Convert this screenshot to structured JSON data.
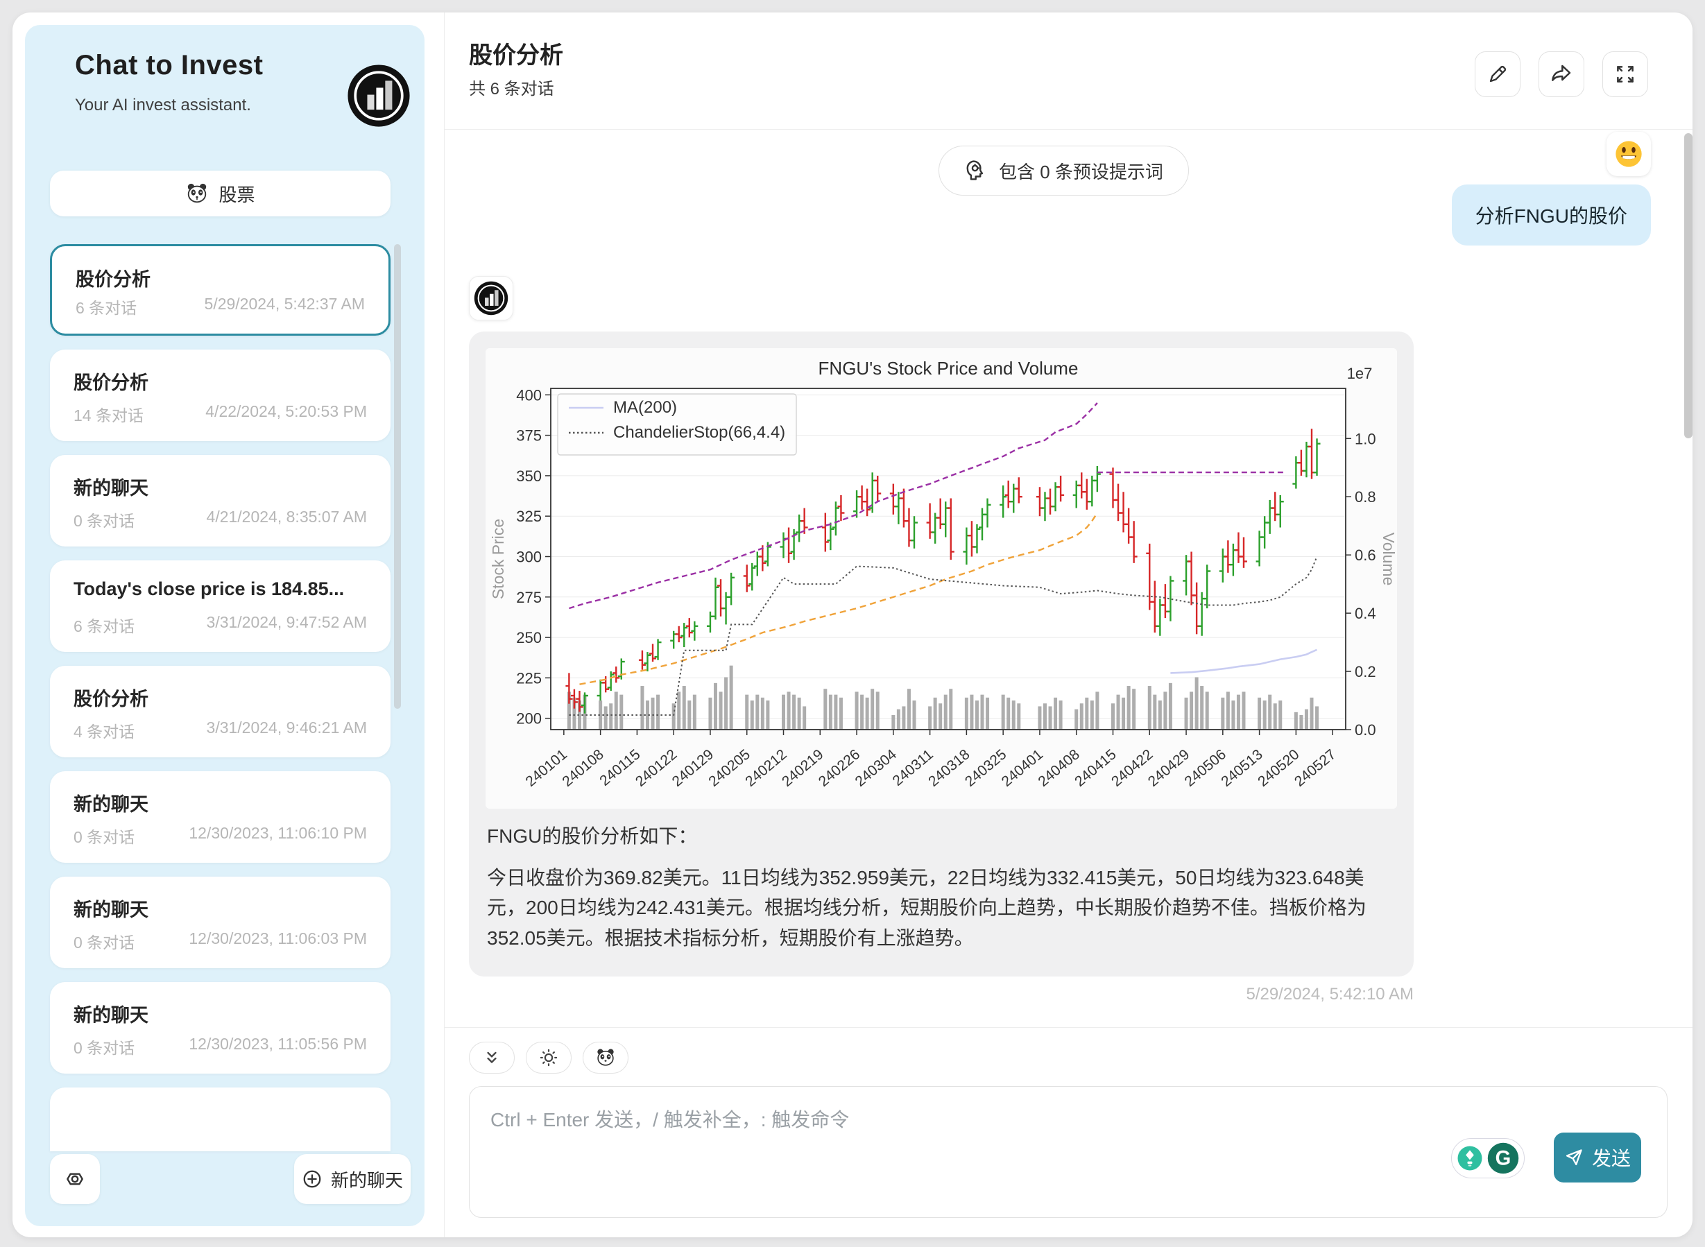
{
  "colors": {
    "accent": "#2c8ca1",
    "sidebar_bg": "#def1fa",
    "user_bubble": "#d8eefb",
    "assistant_bubble": "#f0f0f1",
    "send_button": "#2e8ca2"
  },
  "icons": {
    "brand": "bar-chart-circle",
    "stock": "panda",
    "edit": "pencil",
    "share": "arrow-forward",
    "fullscreen": "expand-arrows",
    "preset": "head-brain",
    "user": "smiley-emoji",
    "collapse": "double-chevron-down",
    "theme": "sun",
    "settings": "gear",
    "new_chat": "plus-circle",
    "suggestion": "lightbulb",
    "grammarly": "g-logo",
    "send": "paper-plane"
  },
  "sidebar": {
    "title": "Chat to Invest",
    "subtitle": "Your AI invest assistant.",
    "stock_button_label": "股票",
    "new_chat_label": "新的聊天",
    "chats": [
      {
        "title": "股价分析",
        "count": "6 条对话",
        "time": "5/29/2024, 5:42:37 AM"
      },
      {
        "title": "股价分析",
        "count": "14 条对话",
        "time": "4/22/2024, 5:20:53 PM"
      },
      {
        "title": "新的聊天",
        "count": "0 条对话",
        "time": "4/21/2024, 8:35:07 AM"
      },
      {
        "title": "Today's close price is 184.85...",
        "count": "6 条对话",
        "time": "3/31/2024, 9:47:52 AM"
      },
      {
        "title": "股价分析",
        "count": "4 条对话",
        "time": "3/31/2024, 9:46:21 AM"
      },
      {
        "title": "新的聊天",
        "count": "0 条对话",
        "time": "12/30/2023, 11:06:10 PM"
      },
      {
        "title": "新的聊天",
        "count": "0 条对话",
        "time": "12/30/2023, 11:06:03 PM"
      },
      {
        "title": "新的聊天",
        "count": "0 条对话",
        "time": "12/30/2023, 11:05:56 PM"
      }
    ]
  },
  "header": {
    "title": "股价分析",
    "subtitle": "共 6 条对话"
  },
  "conversation": {
    "preset_pill": "包含 0 条预设提示词",
    "user_message": "分析FNGU的股价",
    "assistant_intro": "FNGU的股价分析如下：",
    "assistant_body": "今日收盘价为369.82美元。11日均线为352.959美元，22日均线为332.415美元，50日均线为323.648美元，200日均线为242.431美元。根据均线分析，短期股价向上趋势，中长期股价趋势不佳。挡板价格为352.05美元。根据技术指标分析，短期股价有上涨趋势。",
    "assistant_timestamp": "5/29/2024, 5:42:10 AM"
  },
  "composer": {
    "placeholder": "Ctrl + Enter 发送，/ 触发补全，: 触发命令",
    "send_label": "发送"
  },
  "chart_data": {
    "type": "ohlc+volume",
    "title": "FNGU's Stock Price and Volume",
    "ylabel_left": "Stock Price",
    "ylabel_right": "Volume",
    "right_axis_exponent": "1e7",
    "y_left_ticks": [
      200,
      225,
      250,
      275,
      300,
      325,
      350,
      375,
      400
    ],
    "y_left_range": [
      193,
      404
    ],
    "y_right_ticks": [
      0.0,
      0.2,
      0.4,
      0.6,
      0.8,
      1.0
    ],
    "x_tick_labels": [
      "240101",
      "240108",
      "240115",
      "240122",
      "240129",
      "240205",
      "240212",
      "240219",
      "240226",
      "240304",
      "240311",
      "240318",
      "240325",
      "240401",
      "240408",
      "240415",
      "240422",
      "240429",
      "240506",
      "240513",
      "240520",
      "240527"
    ],
    "legend": [
      {
        "label": "MA(200)",
        "style": "solid",
        "color": "#c9cdf2"
      },
      {
        "label": "ChandelierStop(66,4.4)",
        "style": "dotted",
        "color": "#555555"
      }
    ],
    "colors": {
      "up": "#2ca02c",
      "down": "#d62728",
      "volume": "#a6a6a6",
      "trend_upper": "#9b30a5",
      "trend_lower": "#f0a33a",
      "resistance": "#9b30a5",
      "chandelier": "#555555",
      "ma200": "#c9cdf2"
    },
    "candles": [
      [
        "240102",
        220,
        228,
        209,
        212,
        0.13
      ],
      [
        "240103",
        214,
        218,
        206,
        210,
        0.11
      ],
      [
        "240104",
        212,
        217,
        204,
        207,
        0.1
      ],
      [
        "240105",
        208,
        216,
        203,
        214,
        0.12
      ],
      [
        "240108",
        214,
        224,
        211,
        222,
        0.1
      ],
      [
        "240109",
        222,
        226,
        216,
        218,
        0.08
      ],
      [
        "240110",
        219,
        229,
        217,
        227,
        0.09
      ],
      [
        "240111",
        228,
        232,
        222,
        225,
        0.13
      ],
      [
        "240112",
        226,
        237,
        224,
        235,
        0.12
      ],
      [
        "240116",
        236,
        242,
        230,
        233,
        0.15
      ],
      [
        "240117",
        234,
        241,
        229,
        239,
        0.1
      ],
      [
        "240118",
        240,
        246,
        235,
        237,
        0.11
      ],
      [
        "240119",
        238,
        249,
        236,
        247,
        0.12
      ],
      [
        "240122",
        248,
        254,
        243,
        252,
        0.09
      ],
      [
        "240123",
        252,
        257,
        247,
        250,
        0.13
      ],
      [
        "240124",
        251,
        259,
        244,
        256,
        0.15
      ],
      [
        "240125",
        257,
        262,
        250,
        253,
        0.1
      ],
      [
        "240126",
        254,
        260,
        248,
        257,
        0.12
      ],
      [
        "240129",
        257,
        266,
        253,
        263,
        0.11
      ],
      [
        "240130",
        263,
        287,
        261,
        281,
        0.16
      ],
      [
        "240131",
        282,
        286,
        263,
        268,
        0.13
      ],
      [
        "240201",
        268,
        278,
        258,
        275,
        0.18
      ],
      [
        "240202",
        275,
        290,
        270,
        287,
        0.22
      ],
      [
        "240205",
        288,
        295,
        278,
        282,
        0.12
      ],
      [
        "240206",
        283,
        296,
        279,
        293,
        0.1
      ],
      [
        "240207",
        294,
        303,
        288,
        300,
        0.12
      ],
      [
        "240208",
        300,
        307,
        291,
        296,
        0.11
      ],
      [
        "240209",
        297,
        309,
        294,
        306,
        0.1
      ],
      [
        "240212",
        306,
        315,
        299,
        311,
        0.12
      ],
      [
        "240213",
        311,
        318,
        296,
        302,
        0.13
      ],
      [
        "240214",
        303,
        317,
        298,
        314,
        0.12
      ],
      [
        "240215",
        315,
        326,
        309,
        322,
        0.11
      ],
      [
        "240216",
        322,
        330,
        314,
        318,
        0.08
      ],
      [
        "240220",
        318,
        327,
        303,
        309,
        0.14
      ],
      [
        "240221",
        310,
        321,
        304,
        317,
        0.12
      ],
      [
        "240222",
        318,
        334,
        313,
        330,
        0.12
      ],
      [
        "240223",
        331,
        338,
        322,
        327,
        0.11
      ],
      [
        "240226",
        328,
        341,
        324,
        337,
        0.13
      ],
      [
        "240227",
        337,
        344,
        329,
        334,
        0.12
      ],
      [
        "240228",
        334,
        342,
        325,
        329,
        0.11
      ],
      [
        "240229",
        330,
        352,
        327,
        347,
        0.14
      ],
      [
        "240301",
        347,
        350,
        334,
        339,
        0.13
      ],
      [
        "240304",
        339,
        345,
        326,
        331,
        0.05
      ],
      [
        "240305",
        331,
        340,
        320,
        336,
        0.07
      ],
      [
        "240306",
        336,
        342,
        318,
        322,
        0.08
      ],
      [
        "240307",
        322,
        330,
        306,
        310,
        0.14
      ],
      [
        "240308",
        310,
        325,
        305,
        321,
        0.1
      ],
      [
        "240311",
        321,
        333,
        311,
        315,
        0.08
      ],
      [
        "240312",
        315,
        327,
        308,
        324,
        0.11
      ],
      [
        "240313",
        324,
        336,
        317,
        320,
        0.09
      ],
      [
        "240314",
        320,
        334,
        312,
        330,
        0.12
      ],
      [
        "240315",
        330,
        336,
        298,
        303,
        0.14
      ],
      [
        "240318",
        303,
        318,
        295,
        313,
        0.11
      ],
      [
        "240319",
        313,
        322,
        300,
        306,
        0.12
      ],
      [
        "240320",
        306,
        320,
        302,
        317,
        0.1
      ],
      [
        "240321",
        318,
        330,
        310,
        326,
        0.12
      ],
      [
        "240322",
        326,
        336,
        318,
        332,
        0.11
      ],
      [
        "240325",
        332,
        344,
        324,
        337,
        0.12
      ],
      [
        "240326",
        338,
        347,
        330,
        334,
        0.11
      ],
      [
        "240327",
        334,
        345,
        327,
        342,
        0.1
      ],
      [
        "240328",
        342,
        349,
        333,
        337,
        0.09
      ],
      [
        "240401",
        337,
        343,
        325,
        330,
        0.08
      ],
      [
        "240402",
        330,
        340,
        322,
        336,
        0.09
      ],
      [
        "240403",
        336,
        342,
        326,
        331,
        0.08
      ],
      [
        "240404",
        331,
        346,
        328,
        343,
        0.11
      ],
      [
        "240405",
        343,
        350,
        334,
        338,
        0.1
      ],
      [
        "240408",
        338,
        347,
        330,
        344,
        0.07
      ],
      [
        "240409",
        344,
        352,
        336,
        340,
        0.09
      ],
      [
        "240410",
        340,
        348,
        329,
        334,
        0.11
      ],
      [
        "240411",
        334,
        350,
        331,
        347,
        0.1
      ],
      [
        "240412",
        347,
        356,
        340,
        351,
        0.13
      ],
      [
        "240415",
        351,
        355,
        330,
        335,
        0.09
      ],
      [
        "240416",
        335,
        345,
        322,
        327,
        0.12
      ],
      [
        "240417",
        327,
        340,
        315,
        320,
        0.11
      ],
      [
        "240418",
        320,
        330,
        308,
        312,
        0.15
      ],
      [
        "240419",
        312,
        322,
        296,
        300,
        0.14
      ],
      [
        "240422",
        302,
        308,
        267,
        272,
        0.15
      ],
      [
        "240423",
        272,
        285,
        253,
        257,
        0.12
      ],
      [
        "240424",
        257,
        274,
        251,
        270,
        0.1
      ],
      [
        "240425",
        270,
        283,
        262,
        266,
        0.13
      ],
      [
        "240426",
        266,
        288,
        260,
        285,
        0.16
      ],
      [
        "240429",
        285,
        301,
        276,
        297,
        0.11
      ],
      [
        "240430",
        297,
        303,
        270,
        276,
        0.13
      ],
      [
        "240501",
        276,
        284,
        252,
        257,
        0.18
      ],
      [
        "240502",
        257,
        278,
        251,
        274,
        0.15
      ],
      [
        "240503",
        274,
        295,
        268,
        291,
        0.13
      ],
      [
        "240506",
        291,
        305,
        284,
        300,
        0.11
      ],
      [
        "240507",
        300,
        310,
        290,
        295,
        0.13
      ],
      [
        "240508",
        295,
        308,
        288,
        304,
        0.1
      ],
      [
        "240509",
        304,
        315,
        296,
        300,
        0.12
      ],
      [
        "240510",
        300,
        312,
        293,
        297,
        0.13
      ],
      [
        "240513",
        297,
        316,
        294,
        312,
        0.11
      ],
      [
        "240514",
        312,
        325,
        305,
        321,
        0.1
      ],
      [
        "240515",
        321,
        335,
        314,
        330,
        0.12
      ],
      [
        "240516",
        330,
        340,
        322,
        326,
        0.09
      ],
      [
        "240517",
        326,
        338,
        318,
        334,
        0.1
      ],
      [
        "240520",
        345,
        362,
        342,
        358,
        0.06
      ],
      [
        "240521",
        358,
        366,
        350,
        353,
        0.05
      ],
      [
        "240522",
        353,
        371,
        349,
        368,
        0.07
      ],
      [
        "240523",
        368,
        379,
        348,
        352,
        0.11
      ],
      [
        "240524",
        352,
        373,
        350,
        369.82,
        0.08
      ]
    ],
    "lines": {
      "trend_upper": [
        [
          "240102",
          268
        ],
        [
          "240105",
          271
        ],
        [
          "240110",
          275
        ],
        [
          "240115",
          280
        ],
        [
          "240119",
          284
        ],
        [
          "240124",
          288
        ],
        [
          "240129",
          292
        ],
        [
          "240202",
          298
        ],
        [
          "240207",
          304
        ],
        [
          "240212",
          310
        ],
        [
          "240216",
          316
        ],
        [
          "240221",
          320
        ],
        [
          "240226",
          326
        ],
        [
          "240301",
          334
        ],
        [
          "240306",
          340
        ],
        [
          "240311",
          345
        ],
        [
          "240315",
          350
        ],
        [
          "240320",
          356
        ],
        [
          "240325",
          362
        ],
        [
          "240328",
          367
        ],
        [
          "240402",
          372
        ],
        [
          "240404",
          377
        ],
        [
          "240408",
          382
        ],
        [
          "240410",
          388
        ],
        [
          "240412",
          395
        ]
      ],
      "resistance": [
        [
          "240412",
          352.05
        ],
        [
          "240518",
          352.05
        ]
      ],
      "trend_lower": [
        [
          "240104",
          221
        ],
        [
          "240109",
          224
        ],
        [
          "240112",
          227
        ],
        [
          "240117",
          230
        ],
        [
          "240122",
          234
        ],
        [
          "240126",
          238
        ],
        [
          "240131",
          243
        ],
        [
          "240205",
          249
        ],
        [
          "240208",
          253
        ],
        [
          "240213",
          257
        ],
        [
          "240216",
          260
        ],
        [
          "240221",
          264
        ],
        [
          "240226",
          268
        ],
        [
          "240301",
          272
        ],
        [
          "240306",
          277
        ],
        [
          "240311",
          282
        ],
        [
          "240314",
          286
        ],
        [
          "240319",
          291
        ],
        [
          "240322",
          295
        ],
        [
          "240326",
          299
        ],
        [
          "240401",
          304
        ],
        [
          "240404",
          308
        ],
        [
          "240408",
          313
        ],
        [
          "240410",
          318
        ],
        [
          "240411",
          322
        ],
        [
          "240412",
          327
        ]
      ],
      "chandelier": [
        [
          "240102",
          202
        ],
        [
          "240122",
          202
        ],
        [
          "240124",
          242
        ],
        [
          "240201",
          242
        ],
        [
          "240202",
          258
        ],
        [
          "240206",
          258
        ],
        [
          "240212",
          287
        ],
        [
          "240214",
          283
        ],
        [
          "240222",
          283
        ],
        [
          "240226",
          294
        ],
        [
          "240304",
          293
        ],
        [
          "240311",
          286
        ],
        [
          "240318",
          284
        ],
        [
          "240325",
          282
        ],
        [
          "240401",
          281
        ],
        [
          "240405",
          277
        ],
        [
          "240409",
          278
        ],
        [
          "240412",
          279
        ],
        [
          "240416",
          277
        ],
        [
          "240419",
          276
        ],
        [
          "240424",
          275
        ],
        [
          "240429",
          272
        ],
        [
          "240503",
          270
        ],
        [
          "240508",
          270
        ],
        [
          "240510",
          271
        ],
        [
          "240513",
          272
        ],
        [
          "240515",
          273
        ],
        [
          "240517",
          275
        ],
        [
          "240520",
          283
        ],
        [
          "240521",
          285
        ],
        [
          "240522",
          287
        ],
        [
          "240523",
          292
        ],
        [
          "240524",
          300
        ]
      ],
      "ma200": [
        [
          "240426",
          228
        ],
        [
          "240430",
          228.5
        ],
        [
          "240503",
          229.5
        ],
        [
          "240507",
          231
        ],
        [
          "240509",
          232
        ],
        [
          "240513",
          233.5
        ],
        [
          "240515",
          235
        ],
        [
          "240517",
          236.5
        ],
        [
          "240520",
          238
        ],
        [
          "240522",
          239.5
        ],
        [
          "240523",
          241
        ],
        [
          "240524",
          242.4
        ]
      ]
    }
  }
}
